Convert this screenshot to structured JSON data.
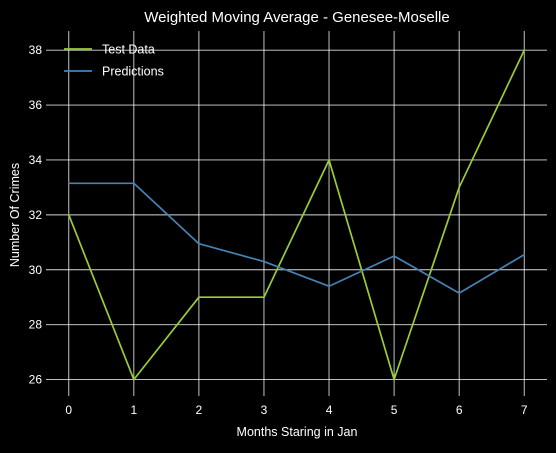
{
  "chart_data": {
    "type": "line",
    "title": "Weighted Moving Average - Genesee-Moselle",
    "xlabel": "Months Staring in Jan",
    "ylabel": "Number Of Crimes",
    "x": [
      0,
      1,
      2,
      3,
      4,
      5,
      6,
      7
    ],
    "xlim": [
      -0.35,
      7.35
    ],
    "ylim": [
      25.4,
      38.7
    ],
    "yticks": [
      26,
      28,
      30,
      32,
      34,
      36,
      38
    ],
    "grid": true,
    "legend_position": "top-left",
    "series": [
      {
        "name": "Test Data",
        "color": "#9acd32",
        "values": [
          32,
          26,
          29,
          29,
          34,
          26,
          33,
          38
        ]
      },
      {
        "name": "Predictions",
        "color": "#4682b4",
        "values": [
          33.15,
          33.15,
          30.95,
          30.3,
          29.4,
          30.5,
          29.15,
          30.55
        ]
      }
    ],
    "background": "#000000",
    "grid_color": "#ffffff"
  }
}
